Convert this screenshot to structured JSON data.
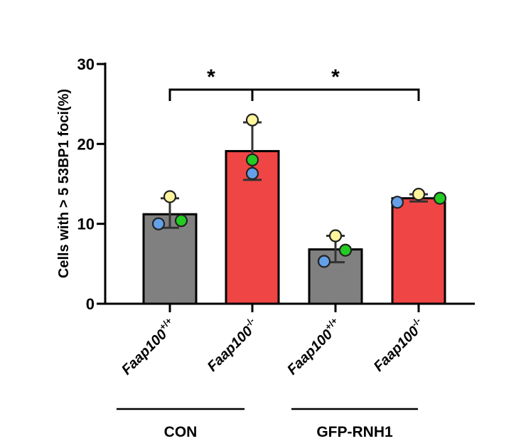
{
  "chart_data": {
    "type": "bar",
    "ylabel": "Cells with > 5 53BP1 foci(%)",
    "ylim": [
      0,
      30
    ],
    "yticks": [
      "0",
      "10",
      "20",
      "30"
    ],
    "bars": [
      {
        "label_main": "Faap100",
        "label_sup": "+/+",
        "mean": 11.2,
        "sd_low": 9.5,
        "sd_high": 13.2,
        "color": "#808080",
        "points": [
          {
            "value": 13.4,
            "color": "#fff59d"
          },
          {
            "value": 10.0,
            "color": "#64a0e8"
          },
          {
            "value": 10.4,
            "color": "#22cc22"
          }
        ]
      },
      {
        "label_main": "Faap100",
        "label_sup": "-/-",
        "mean": 19.1,
        "sd_low": 15.5,
        "sd_high": 22.7,
        "color": "#f04545",
        "points": [
          {
            "value": 23.0,
            "color": "#fff59d"
          },
          {
            "value": 18.0,
            "color": "#22cc22"
          },
          {
            "value": 16.3,
            "color": "#64a0e8"
          }
        ]
      },
      {
        "label_main": "Faap100",
        "label_sup": "+/+",
        "mean": 6.8,
        "sd_low": 5.2,
        "sd_high": 8.5,
        "color": "#808080",
        "points": [
          {
            "value": 8.5,
            "color": "#fff59d"
          },
          {
            "value": 5.3,
            "color": "#64a0e8"
          },
          {
            "value": 6.7,
            "color": "#22cc22"
          }
        ]
      },
      {
        "label_main": "Faap100",
        "label_sup": "-/-",
        "mean": 13.2,
        "sd_low": 12.8,
        "sd_high": 13.7,
        "color": "#f04545",
        "points": [
          {
            "value": 13.7,
            "color": "#fff59d"
          },
          {
            "value": 12.7,
            "color": "#64a0e8"
          },
          {
            "value": 13.2,
            "color": "#22cc22"
          }
        ]
      }
    ],
    "comparisons": [
      {
        "from": 0,
        "to": 1,
        "label": "*"
      },
      {
        "from": 1,
        "to": 3,
        "label": "*"
      }
    ],
    "groups": [
      {
        "label": "CON",
        "from": 0,
        "to": 1
      },
      {
        "label": "GFP-RNH1",
        "from": 2,
        "to": 3
      }
    ]
  }
}
